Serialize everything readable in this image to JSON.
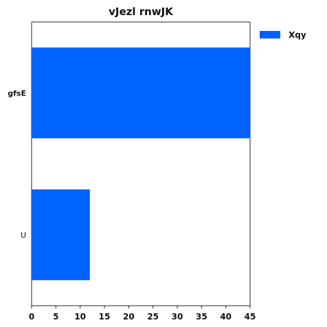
{
  "chart_data": {
    "type": "bar",
    "orientation": "horizontal",
    "title": "vJezl  rnwJK",
    "categories": [
      "gfsE",
      "U"
    ],
    "series": [
      {
        "name": "Xqy",
        "values": [
          45,
          12
        ],
        "color": "#0062ff"
      }
    ],
    "xlim": [
      0,
      45
    ],
    "xticks": [
      0,
      5,
      10,
      15,
      20,
      25,
      30,
      35,
      40,
      45
    ],
    "xlabel": "",
    "ylabel": "",
    "grid": false,
    "legend_position": "outside-top-right"
  }
}
